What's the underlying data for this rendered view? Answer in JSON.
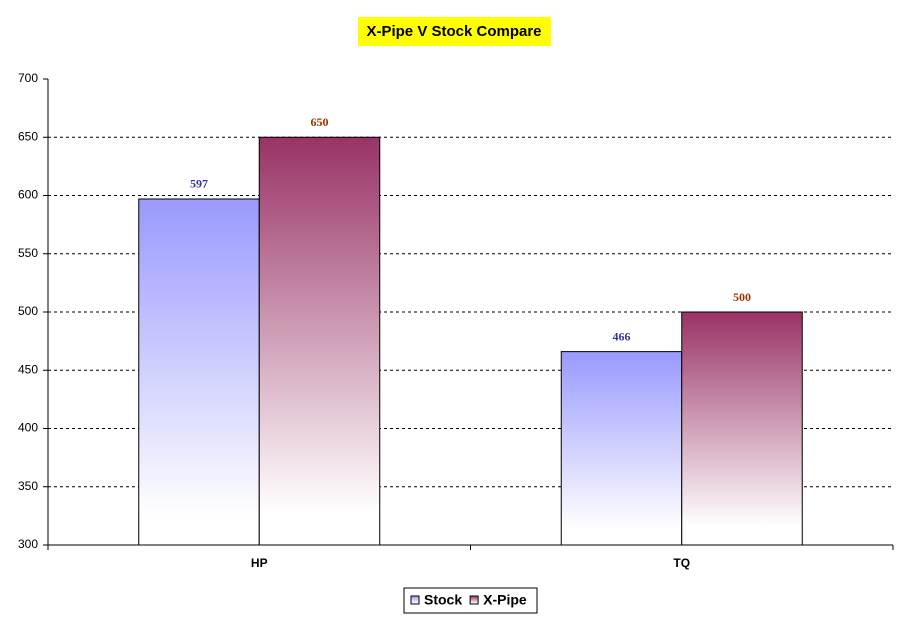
{
  "chart_data": {
    "type": "bar",
    "title": "X-Pipe V Stock Compare",
    "categories": [
      "HP",
      "TQ"
    ],
    "series": [
      {
        "name": "Stock",
        "color": "#9999ff",
        "label_color": "#333399",
        "values": [
          597,
          466
        ]
      },
      {
        "name": "X-Pipe",
        "color": "#993366",
        "label_color": "#993300",
        "values": [
          650,
          500
        ]
      }
    ],
    "ylim": [
      300,
      700
    ],
    "yticks": [
      300,
      350,
      400,
      450,
      500,
      550,
      600,
      650,
      700
    ],
    "grid": true,
    "legend": "bottom"
  }
}
